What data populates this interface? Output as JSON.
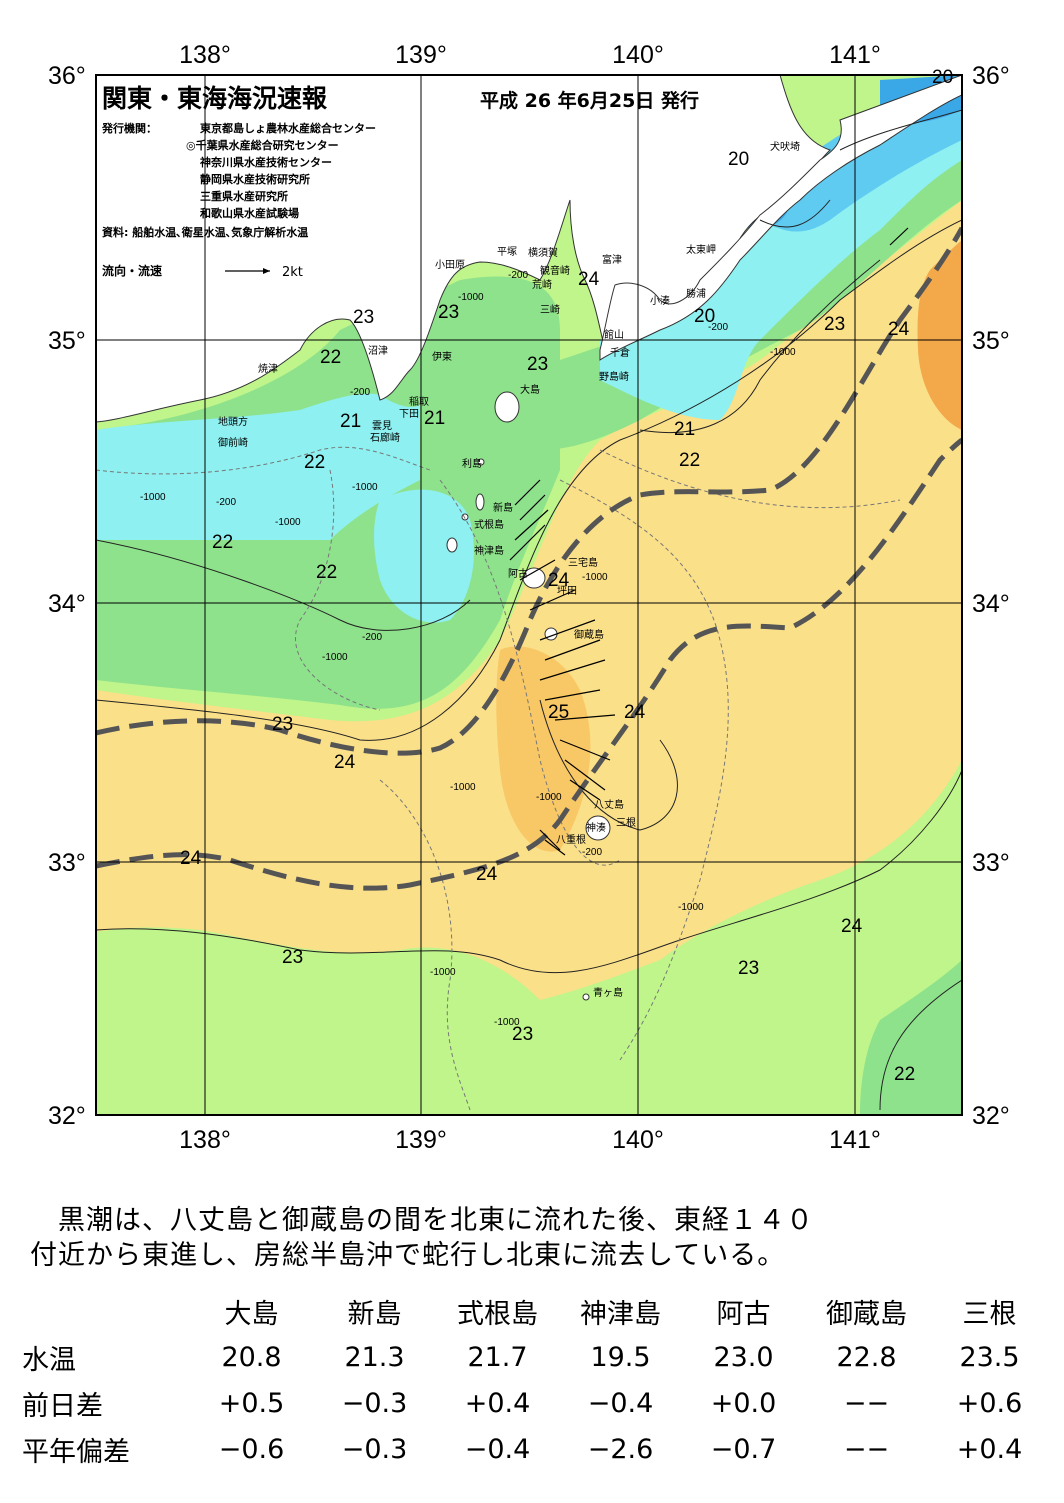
{
  "header": {
    "title": "関東・東海海況速報",
    "issue_date": "平成 26 年6月25日 発行",
    "publisher_label": "発行機関：",
    "publishers": [
      "東京都島しょ農林水産総合センター",
      "◎千葉県水産総合研究センター",
      "神奈川県水産技術センター",
      "静岡県水産技術研究所",
      "三重県水産研究所",
      "和歌山県水産試験場"
    ],
    "sources": "資料: 船舶水温､衛星水温､気象庁解析水温",
    "current_legend_label": "流向・流速",
    "current_legend_scale": "2kt"
  },
  "axes": {
    "lon_ticks": [
      "138°",
      "139°",
      "140°",
      "141°"
    ],
    "lat_ticks": [
      "36°",
      "35°",
      "34°",
      "33°",
      "32°"
    ]
  },
  "map": {
    "lon_range": [
      137.5,
      141.5
    ],
    "lat_range": [
      32,
      36
    ],
    "isotherm_labels": [
      "20",
      "20",
      "20",
      "21",
      "21",
      "21",
      "22",
      "22",
      "22",
      "22",
      "22",
      "22",
      "23",
      "23",
      "23",
      "23",
      "23",
      "23",
      "23",
      "23",
      "24",
      "24",
      "24",
      "24",
      "24",
      "24",
      "24",
      "25"
    ],
    "depth_labels": [
      "-200",
      "-1000",
      "-200",
      "-1000",
      "-200",
      "-1000",
      "-200",
      "-1000",
      "-1000",
      "-1000",
      "-1000",
      "-1000",
      "-200",
      "-1000",
      "-1000",
      "-1000",
      "-1000",
      "-200"
    ],
    "place_names": [
      "犬吠埼",
      "太東岬",
      "勝浦",
      "小湊",
      "富津",
      "館山",
      "千倉",
      "野島崎",
      "観音崎",
      "横須賀",
      "荒崎",
      "三崎",
      "平塚",
      "小田原",
      "大島",
      "伊東",
      "稲取",
      "下田",
      "雲見",
      "石廊崎",
      "沼津",
      "焼津",
      "地頭方",
      "御前崎",
      "利島",
      "新島",
      "式根島",
      "神津島",
      "三宅島",
      "阿古",
      "坪田",
      "御蔵島",
      "八丈島",
      "三根",
      "八重根",
      "神湊",
      "青ヶ島"
    ],
    "kuroshio_axes": "黒潮流路",
    "colors": {
      "t_below_20": "#3aa7e6",
      "t_20_21": "#5fcbf0",
      "t_21_22": "#8ef0f0",
      "t_22_23": "#8ee28c",
      "t_23_24": "#bff58a",
      "t_24_25": "#fbe08a",
      "t_25_26": "#f8c866",
      "t_above_26": "#f3a84a",
      "land": "#ffffff",
      "kuroshio_line": "#555555"
    }
  },
  "commentary": [
    "　黒潮は、八丈島と御蔵島の間を北東に流れた後、東経１４０",
    "付近から東進し、房総半島沖で蛇行し北東に流去している。"
  ],
  "observations": {
    "stations": [
      "大島",
      "新島",
      "式根島",
      "神津島",
      "阿古",
      "御蔵島",
      "三根"
    ],
    "rows": [
      {
        "label": "水温",
        "values": [
          "20.8",
          "21.3",
          "21.7",
          "19.5",
          "23.0",
          "22.8",
          "23.5"
        ]
      },
      {
        "label": "前日差",
        "values": [
          "+0.5",
          "−0.3",
          "+0.4",
          "−0.4",
          "+0.0",
          "−−",
          "+0.6"
        ]
      },
      {
        "label": "平年偏差",
        "values": [
          "−0.6",
          "−0.3",
          "−0.4",
          "−2.6",
          "−0.7",
          "−−",
          "+0.4"
        ]
      }
    ]
  }
}
